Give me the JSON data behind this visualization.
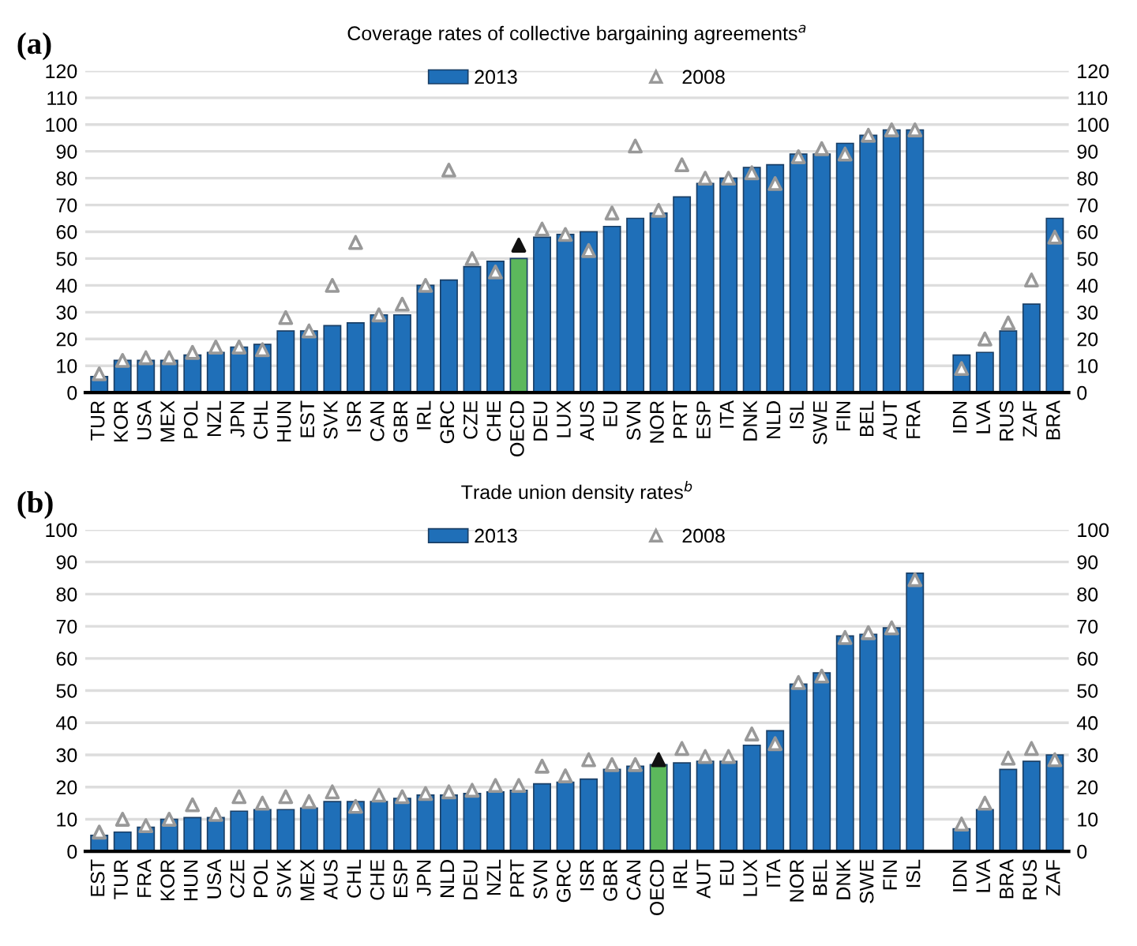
{
  "chart_data": [
    {
      "type": "bar",
      "title": "Coverage rates of collective bargaining agreements$^{a}$",
      "annotations": [
        "(a)"
      ],
      "categories": [
        "TUR",
        "KOR",
        "USA",
        "MEX",
        "POL",
        "NZL",
        "JPN",
        "CHL",
        "HUN",
        "EST",
        "SVK",
        "ISR",
        "CAN",
        "GBR",
        "IRL",
        "GRC",
        "CZE",
        "CHE",
        "OECD",
        "DEU",
        "LUX",
        "AUS",
        "EU",
        "SVN",
        "NOR",
        "PRT",
        "ESP",
        "ITA",
        "DNK",
        "NLD",
        "ISL",
        "SWE",
        "FIN",
        "BEL",
        "AUT",
        "FRA",
        null,
        "IDN",
        "LVA",
        "RUS",
        "ZAF",
        "BRA"
      ],
      "series": [
        {
          "name": "2013",
          "color": "#1f6fb8",
          "colors": [
            "#1f6fb8",
            "#1f6fb8",
            "#1f6fb8",
            "#1f6fb8",
            "#1f6fb8",
            "#1f6fb8",
            "#1f6fb8",
            "#1f6fb8",
            "#1f6fb8",
            "#1f6fb8",
            "#1f6fb8",
            "#1f6fb8",
            "#1f6fb8",
            "#1f6fb8",
            "#1f6fb8",
            "#1f6fb8",
            "#1f6fb8",
            "#1f6fb8",
            "#5cb85c",
            "#1f6fb8",
            "#1f6fb8",
            "#1f6fb8",
            "#1f6fb8",
            "#1f6fb8",
            "#1f6fb8",
            "#1f6fb8",
            "#1f6fb8",
            "#1f6fb8",
            "#1f6fb8",
            "#1f6fb8",
            "#1f6fb8",
            "#1f6fb8",
            "#1f6fb8",
            "#1f6fb8",
            "#1f6fb8",
            "#1f6fb8",
            "#1f6fb8",
            "#1f6fb8",
            "#1f6fb8",
            "#1f6fb8",
            "#1f6fb8",
            "#1f6fb8"
          ],
          "values": [
            6,
            12,
            12,
            12,
            14,
            15,
            17,
            18,
            23,
            23,
            25,
            26,
            29,
            29,
            40,
            42,
            47,
            49,
            50,
            58,
            59,
            60,
            62,
            65,
            67,
            73,
            78,
            80,
            84,
            85,
            89,
            89,
            93,
            96,
            98,
            98,
            null,
            14,
            15,
            23,
            33,
            65
          ]
        },
        {
          "name": "2008",
          "type": "scatter",
          "marker": "triangle",
          "color": "#999999",
          "colors": [
            "#999999",
            "#999999",
            "#999999",
            "#999999",
            "#999999",
            "#999999",
            "#999999",
            "#999999",
            "#999999",
            "#999999",
            "#999999",
            "#999999",
            "#999999",
            "#999999",
            "#999999",
            "#999999",
            "#999999",
            "#999999",
            "#111111",
            "#999999",
            "#999999",
            "#999999",
            "#999999",
            "#999999",
            "#999999",
            "#999999",
            "#999999",
            "#999999",
            "#999999",
            "#999999",
            "#999999",
            "#999999",
            "#999999",
            "#999999",
            "#999999",
            "#999999",
            "#999999",
            "#999999",
            "#999999",
            "#999999",
            "#999999",
            "#999999"
          ],
          "values": [
            7,
            12,
            13,
            13,
            15,
            17,
            17,
            16,
            28,
            23,
            40,
            56,
            29,
            33,
            40,
            83,
            50,
            45,
            55,
            61,
            59,
            53,
            67,
            92,
            68,
            85,
            80,
            80,
            82,
            78,
            88,
            91,
            89,
            96,
            98,
            98,
            null,
            9,
            20,
            26,
            42,
            58
          ]
        }
      ],
      "ylim": [
        0,
        120
      ],
      "yticks": [
        0,
        10,
        20,
        30,
        40,
        50,
        60,
        70,
        80,
        90,
        100,
        110,
        120
      ],
      "y2lim": [
        0,
        120
      ],
      "y2ticks": [
        0,
        10,
        20,
        30,
        40,
        50,
        60,
        70,
        80,
        90,
        100,
        110,
        120
      ],
      "grid": "y",
      "legend": "top"
    },
    {
      "type": "bar",
      "title": "Trade union density rates$^{b}$",
      "annotations": [
        "(b)"
      ],
      "categories": [
        "EST",
        "TUR",
        "FRA",
        "KOR",
        "HUN",
        "USA",
        "CZE",
        "POL",
        "SVK",
        "MEX",
        "AUS",
        "CHL",
        "CHE",
        "ESP",
        "JPN",
        "NLD",
        "DEU",
        "NZL",
        "PRT",
        "SVN",
        "GRC",
        "ISR",
        "GBR",
        "CAN",
        "OECD",
        "IRL",
        "AUT",
        "EU",
        "LUX",
        "ITA",
        "NOR",
        "BEL",
        "DNK",
        "SWE",
        "FIN",
        "ISL",
        null,
        "IDN",
        "LVA",
        "BRA",
        "RUS",
        "ZAF"
      ],
      "series": [
        {
          "name": "2013",
          "color": "#1f6fb8",
          "colors": [
            "#1f6fb8",
            "#1f6fb8",
            "#1f6fb8",
            "#1f6fb8",
            "#1f6fb8",
            "#1f6fb8",
            "#1f6fb8",
            "#1f6fb8",
            "#1f6fb8",
            "#1f6fb8",
            "#1f6fb8",
            "#1f6fb8",
            "#1f6fb8",
            "#1f6fb8",
            "#1f6fb8",
            "#1f6fb8",
            "#1f6fb8",
            "#1f6fb8",
            "#1f6fb8",
            "#1f6fb8",
            "#1f6fb8",
            "#1f6fb8",
            "#1f6fb8",
            "#1f6fb8",
            "#5cb85c",
            "#1f6fb8",
            "#1f6fb8",
            "#1f6fb8",
            "#1f6fb8",
            "#1f6fb8",
            "#1f6fb8",
            "#1f6fb8",
            "#1f6fb8",
            "#1f6fb8",
            "#1f6fb8",
            "#1f6fb8",
            "#1f6fb8",
            "#1f6fb8",
            "#1f6fb8",
            "#1f6fb8",
            "#1f6fb8",
            "#1f6fb8"
          ],
          "values": [
            5,
            6,
            7.5,
            10,
            10.5,
            10.5,
            12.5,
            13,
            13,
            13.5,
            15.5,
            15.5,
            15.5,
            16.5,
            17.5,
            17.5,
            18,
            18.5,
            19,
            21,
            21.5,
            22.5,
            25.5,
            26.5,
            27,
            27.5,
            28,
            28,
            33,
            37.5,
            52,
            55.5,
            67,
            67.5,
            69.5,
            86.5,
            null,
            7,
            13,
            25.5,
            28,
            30
          ]
        },
        {
          "name": "2008",
          "type": "scatter",
          "marker": "triangle",
          "color": "#999999",
          "colors": [
            "#999999",
            "#999999",
            "#999999",
            "#999999",
            "#999999",
            "#999999",
            "#999999",
            "#999999",
            "#999999",
            "#999999",
            "#999999",
            "#999999",
            "#999999",
            "#999999",
            "#999999",
            "#999999",
            "#999999",
            "#999999",
            "#999999",
            "#999999",
            "#999999",
            "#999999",
            "#999999",
            "#999999",
            "#111111",
            "#999999",
            "#999999",
            "#999999",
            "#999999",
            "#999999",
            "#999999",
            "#999999",
            "#999999",
            "#999999",
            "#999999",
            "#999999",
            "#999999",
            "#999999",
            "#999999",
            "#999999",
            "#999999",
            "#999999"
          ],
          "values": [
            6,
            10,
            8,
            10,
            14.5,
            11.5,
            17,
            15,
            17,
            15.5,
            18.5,
            14,
            17.5,
            17,
            18,
            18.5,
            19,
            20.5,
            20.5,
            26.5,
            23.5,
            28.5,
            27,
            27,
            28.5,
            32,
            29.5,
            29.5,
            36.5,
            33.5,
            52.5,
            54.5,
            66.5,
            68,
            69.5,
            84.5,
            null,
            8.5,
            15,
            29,
            32,
            28.5
          ]
        }
      ],
      "ylim": [
        0,
        100
      ],
      "yticks": [
        0,
        10,
        20,
        30,
        40,
        50,
        60,
        70,
        80,
        90,
        100
      ],
      "y2lim": [
        0,
        100
      ],
      "y2ticks": [
        0,
        10,
        20,
        30,
        40,
        50,
        60,
        70,
        80,
        90,
        100
      ],
      "grid": "y",
      "legend": "top"
    }
  ]
}
